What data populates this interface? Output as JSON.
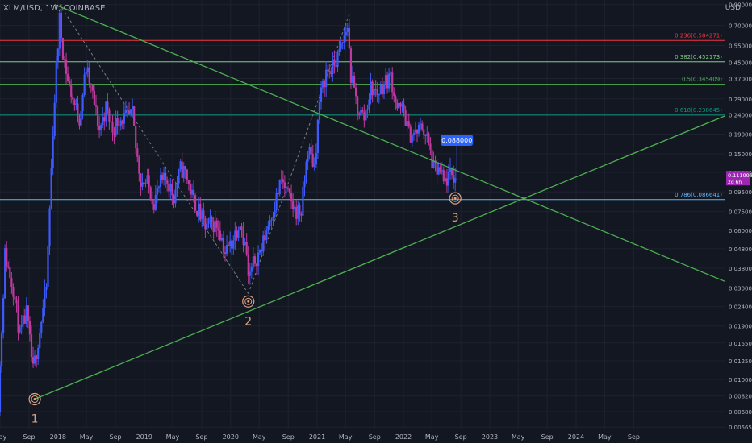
{
  "symbol_line": "XLM/USD, 1W, COINBASE",
  "currency": "USD",
  "colors": {
    "background": "#131722",
    "candle_up": "#3d5afe",
    "candle_down": "#c0399f",
    "trendline": "#4caf50",
    "axis_text": "#b2b5be"
  },
  "chart_data": {
    "type": "candlestick",
    "title": "XLM/USD, 1W, COINBASE",
    "y_scale": "log",
    "ylim": [
      0.0055,
      0.95
    ],
    "y_ticks": [
      "0.900000",
      "0.700000",
      "0.550000",
      "0.450000",
      "0.370000",
      "0.290000",
      "0.240000",
      "0.190000",
      "0.150000",
      "0.120000",
      "0.095000",
      "0.075000",
      "0.060000",
      "0.048000",
      "0.038000",
      "0.030000",
      "0.024000",
      "0.019000",
      "0.015500",
      "0.012500",
      "0.010000",
      "0.008200",
      "0.006800",
      "0.005650"
    ],
    "x_range": [
      "2017-05-01",
      "2025-09-20"
    ],
    "x_ticks": [
      {
        "date": "2017-05-01",
        "label": "May"
      },
      {
        "date": "2017-09-01",
        "label": "Sep"
      },
      {
        "date": "2018-01-01",
        "label": "2018"
      },
      {
        "date": "2018-05-01",
        "label": "May"
      },
      {
        "date": "2018-09-01",
        "label": "Sep"
      },
      {
        "date": "2019-01-01",
        "label": "2019"
      },
      {
        "date": "2019-05-01",
        "label": "May"
      },
      {
        "date": "2019-09-01",
        "label": "Sep"
      },
      {
        "date": "2020-01-01",
        "label": "2020"
      },
      {
        "date": "2020-05-01",
        "label": "May"
      },
      {
        "date": "2020-09-01",
        "label": "Sep"
      },
      {
        "date": "2021-01-01",
        "label": "2021"
      },
      {
        "date": "2021-05-01",
        "label": "May"
      },
      {
        "date": "2021-09-01",
        "label": "Sep"
      },
      {
        "date": "2022-01-01",
        "label": "2022"
      },
      {
        "date": "2022-05-01",
        "label": "May"
      },
      {
        "date": "2022-09-01",
        "label": "Sep"
      },
      {
        "date": "2023-01-01",
        "label": "2023"
      },
      {
        "date": "2023-05-01",
        "label": "May"
      },
      {
        "date": "2023-09-01",
        "label": "Sep"
      },
      {
        "date": "2024-01-01",
        "label": "2024"
      },
      {
        "date": "2024-05-01",
        "label": "May"
      },
      {
        "date": "2024-09-01",
        "label": "Sep"
      }
    ],
    "price_path": [
      [
        "2017-04-17",
        0.0048
      ],
      [
        "2017-05-22",
        0.045
      ],
      [
        "2017-06-26",
        0.03
      ],
      [
        "2017-07-24",
        0.017
      ],
      [
        "2017-08-21",
        0.022
      ],
      [
        "2017-09-18",
        0.011
      ],
      [
        "2017-10-16",
        0.018
      ],
      [
        "2017-11-13",
        0.03
      ],
      [
        "2017-12-11",
        0.2
      ],
      [
        "2017-12-25",
        0.42
      ],
      [
        "2018-01-08",
        0.75
      ],
      [
        "2018-01-22",
        0.52
      ],
      [
        "2018-02-12",
        0.36
      ],
      [
        "2018-03-12",
        0.27
      ],
      [
        "2018-04-02",
        0.23
      ],
      [
        "2018-04-30",
        0.42
      ],
      [
        "2018-05-28",
        0.3
      ],
      [
        "2018-06-25",
        0.2
      ],
      [
        "2018-07-23",
        0.26
      ],
      [
        "2018-08-20",
        0.2
      ],
      [
        "2018-09-17",
        0.23
      ],
      [
        "2018-10-22",
        0.23
      ],
      [
        "2018-11-12",
        0.24
      ],
      [
        "2018-11-26",
        0.16
      ],
      [
        "2018-12-17",
        0.11
      ],
      [
        "2019-01-14",
        0.105
      ],
      [
        "2019-02-11",
        0.085
      ],
      [
        "2019-03-11",
        0.105
      ],
      [
        "2019-04-08",
        0.11
      ],
      [
        "2019-05-06",
        0.09
      ],
      [
        "2019-06-03",
        0.125
      ],
      [
        "2019-06-24",
        0.12
      ],
      [
        "2019-07-22",
        0.09
      ],
      [
        "2019-08-19",
        0.075
      ],
      [
        "2019-09-16",
        0.062
      ],
      [
        "2019-10-14",
        0.065
      ],
      [
        "2019-11-11",
        0.063
      ],
      [
        "2019-12-09",
        0.046
      ],
      [
        "2020-01-06",
        0.052
      ],
      [
        "2020-02-10",
        0.068
      ],
      [
        "2020-03-09",
        0.045
      ],
      [
        "2020-03-16",
        0.033
      ],
      [
        "2020-04-13",
        0.042
      ],
      [
        "2020-05-11",
        0.048
      ],
      [
        "2020-06-08",
        0.065
      ],
      [
        "2020-07-06",
        0.082
      ],
      [
        "2020-08-03",
        0.11
      ],
      [
        "2020-08-31",
        0.09
      ],
      [
        "2020-09-28",
        0.076
      ],
      [
        "2020-10-26",
        0.075
      ],
      [
        "2020-11-23",
        0.16
      ],
      [
        "2020-12-21",
        0.13
      ],
      [
        "2021-01-11",
        0.28
      ],
      [
        "2021-02-08",
        0.4
      ],
      [
        "2021-03-08",
        0.42
      ],
      [
        "2021-04-05",
        0.5
      ],
      [
        "2021-05-10",
        0.7
      ],
      [
        "2021-05-24",
        0.38
      ],
      [
        "2021-06-21",
        0.26
      ],
      [
        "2021-07-19",
        0.23
      ],
      [
        "2021-08-16",
        0.33
      ],
      [
        "2021-09-13",
        0.31
      ],
      [
        "2021-10-11",
        0.35
      ],
      [
        "2021-11-08",
        0.38
      ],
      [
        "2021-12-06",
        0.26
      ],
      [
        "2022-01-03",
        0.25
      ],
      [
        "2022-01-24",
        0.19
      ],
      [
        "2022-02-21",
        0.19
      ],
      [
        "2022-03-21",
        0.21
      ],
      [
        "2022-04-11",
        0.18
      ],
      [
        "2022-05-09",
        0.125
      ],
      [
        "2022-06-06",
        0.12
      ],
      [
        "2022-06-20",
        0.105
      ],
      [
        "2022-07-18",
        0.115
      ],
      [
        "2022-08-08",
        0.113
      ]
    ],
    "annotation_label": "0.088000",
    "last_price": "0.111993",
    "countdown": "2d 6h",
    "fib_levels": [
      {
        "label": "0.236(0.584271)",
        "value": 0.584271,
        "color": "#f23645"
      },
      {
        "label": "0.382(0.452173)",
        "value": 0.452173,
        "color": "#81c784"
      },
      {
        "label": "0.5(0.345409)",
        "value": 0.345409,
        "color": "#4caf50"
      },
      {
        "label": "0.618(0.238645)",
        "value": 0.238645,
        "color": "#089981"
      },
      {
        "label": "0.786(0.086641)",
        "value": 0.086641,
        "color": "#64b5f6"
      }
    ],
    "pivot_points": [
      {
        "label": "1",
        "date": "2017-09-25",
        "value": 0.0079
      },
      {
        "label": "2",
        "date": "2020-03-16",
        "value": 0.0255
      },
      {
        "label": "3",
        "date": "2022-08-08",
        "value": 0.088
      }
    ],
    "trendlines": [
      {
        "start": [
          "2017-09-25",
          0.0079
        ],
        "end": [
          "2025-09-20",
          0.236
        ]
      },
      {
        "start": [
          "2017-12-18",
          0.9
        ],
        "end": [
          "2025-09-20",
          0.0325
        ]
      }
    ],
    "dashed_lines": [
      {
        "start": [
          "2018-01-08",
          0.9
        ],
        "end": [
          "2020-03-16",
          0.028
        ]
      },
      {
        "start": [
          "2020-03-16",
          0.028
        ],
        "end": [
          "2021-05-17",
          0.8
        ]
      }
    ]
  }
}
